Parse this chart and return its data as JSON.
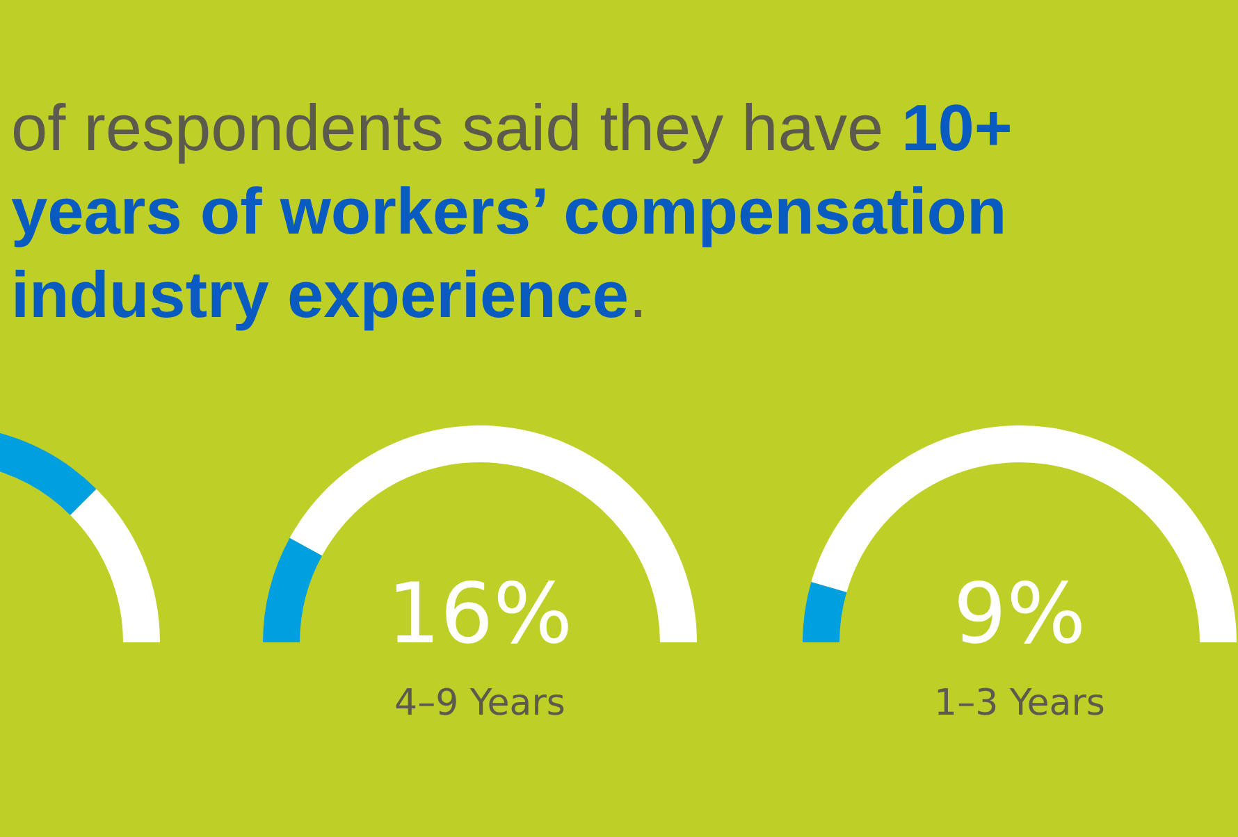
{
  "chart_data": [
    {
      "type": "other",
      "annotations": [
        "of respondents said they have ",
        "10+ years of workers’ compensation industry experience",
        "."
      ]
    },
    {
      "type": "donut",
      "categories": [
        null,
        null
      ],
      "values": [
        75,
        25
      ],
      "colors": [
        "#009fdf",
        "#ffffff"
      ]
    },
    {
      "type": "donut",
      "title": "4–9 Years",
      "categories": [
        null,
        null
      ],
      "values": [
        16,
        84
      ],
      "colors": [
        "#009fdf",
        "#ffffff"
      ],
      "annotations": [
        "16%"
      ]
    },
    {
      "type": "donut",
      "title": "1–3 Years",
      "categories": [
        null,
        null
      ],
      "values": [
        9,
        91
      ],
      "colors": [
        "#009fdf",
        "#ffffff"
      ],
      "annotations": [
        "9%"
      ]
    }
  ]
}
